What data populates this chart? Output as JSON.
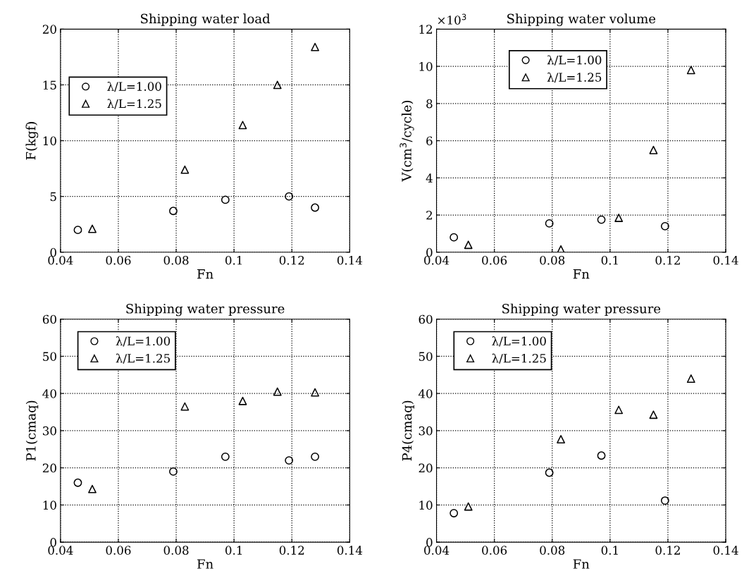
{
  "chart_data": [
    {
      "type": "scatter",
      "title": "Shipping water load",
      "xlabel": "Fn",
      "ylabel": "F(kgf)",
      "xlim": [
        0.04,
        0.14
      ],
      "xticks": [
        0.04,
        0.06,
        0.08,
        0.1,
        0.12,
        0.14
      ],
      "ylim": [
        0,
        20
      ],
      "yticks": [
        0,
        5,
        10,
        15,
        20
      ],
      "grid": true,
      "legend": "left",
      "line_style": "dotted",
      "series": [
        {
          "name": "λ/L=1.00",
          "color": "#000000",
          "marker": "circle",
          "x": [
            0.046,
            0.079,
            0.097,
            0.119,
            0.128
          ],
          "values": [
            2.0,
            3.7,
            4.7,
            5.0,
            4.0
          ]
        },
        {
          "name": "λ/L=1.25",
          "color": "#000000",
          "marker": "triangle",
          "x": [
            0.051,
            0.083,
            0.103,
            0.115,
            0.128
          ],
          "values": [
            2.1,
            7.4,
            11.4,
            15.0,
            18.4
          ]
        }
      ]
    },
    {
      "type": "scatter",
      "title": "Shipping water volume",
      "xlabel": "Fn",
      "ylabel": "V(cm$^{3}$/cycle)",
      "annotations": [
        "×10$^{3}$"
      ],
      "xlim": [
        0.04,
        0.14
      ],
      "xticks": [
        0.04,
        0.06,
        0.08,
        0.1,
        0.12,
        0.14
      ],
      "ylim": [
        0,
        12
      ],
      "yticks": [
        0,
        2,
        4,
        6,
        8,
        10,
        12
      ],
      "grid": true,
      "legend": "top",
      "line_style": "dotted",
      "series": [
        {
          "name": "λ/L=1.00",
          "color": "#000000",
          "marker": "circle",
          "x": [
            0.046,
            0.079,
            0.097,
            0.119
          ],
          "values": [
            0.8,
            1.55,
            1.75,
            1.4
          ]
        },
        {
          "name": "λ/L=1.25",
          "color": "#000000",
          "marker": "triangle",
          "x": [
            0.051,
            0.083,
            0.103,
            0.115,
            0.128
          ],
          "values": [
            0.4,
            0.15,
            1.85,
            5.5,
            9.8
          ]
        }
      ]
    },
    {
      "type": "scatter",
      "title": "Shipping water pressure",
      "xlabel": "Fn",
      "ylabel": "P1(cmaq)",
      "xlim": [
        0.04,
        0.14
      ],
      "xticks": [
        0.04,
        0.06,
        0.08,
        0.1,
        0.12,
        0.14
      ],
      "ylim": [
        0,
        60
      ],
      "yticks": [
        0,
        10,
        20,
        30,
        40,
        50,
        60
      ],
      "grid": true,
      "legend": "top left",
      "line_style": "dotted",
      "series": [
        {
          "name": "λ/L=1.00",
          "color": "#000000",
          "marker": "circle",
          "x": [
            0.046,
            0.079,
            0.097,
            0.119,
            0.128
          ],
          "values": [
            16,
            19,
            23,
            22,
            23
          ]
        },
        {
          "name": "λ/L=1.25",
          "color": "#000000",
          "marker": "triangle",
          "x": [
            0.051,
            0.083,
            0.103,
            0.115,
            0.128
          ],
          "values": [
            14.3,
            36.5,
            38,
            40.5,
            40.3
          ]
        }
      ]
    },
    {
      "type": "scatter",
      "title": "Shipping water pressure",
      "xlabel": "Fn",
      "ylabel": "P4(cmaq)",
      "xlim": [
        0.04,
        0.14
      ],
      "xticks": [
        0.04,
        0.06,
        0.08,
        0.1,
        0.12,
        0.14
      ],
      "ylim": [
        0,
        60
      ],
      "yticks": [
        0,
        10,
        20,
        30,
        40,
        50,
        60
      ],
      "grid": true,
      "legend": "top left",
      "line_style": "dotted",
      "series": [
        {
          "name": "λ/L=1.00",
          "color": "#000000",
          "marker": "circle",
          "x": [
            0.046,
            0.079,
            0.097,
            0.119
          ],
          "values": [
            7.8,
            18.7,
            23.3,
            11.2
          ]
        },
        {
          "name": "λ/L=1.25",
          "color": "#000000",
          "marker": "triangle",
          "x": [
            0.051,
            0.083,
            0.103,
            0.115,
            0.128
          ],
          "values": [
            9.6,
            27.7,
            35.6,
            34.3,
            44
          ]
        }
      ]
    }
  ]
}
